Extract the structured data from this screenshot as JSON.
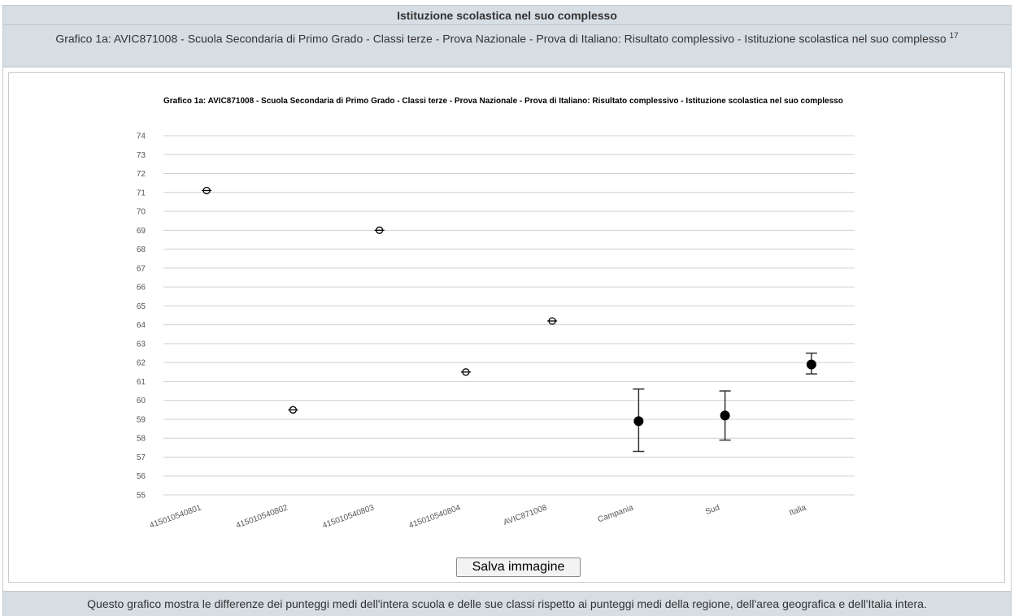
{
  "header": {
    "title": "Istituzione scolastica nel suo complesso"
  },
  "subtitle": {
    "text": "Grafico 1a: AVIC871008 - Scuola Secondaria di Primo Grado - Classi terze - Prova Nazionale - Prova di Italiano: Risultato complessivo - Istituzione scolastica nel suo complesso",
    "footnote": "17"
  },
  "chart_data": {
    "type": "scatter",
    "title": "Grafico 1a: AVIC871008 - Scuola Secondaria di Primo Grado - Classi terze - Prova Nazionale - Prova di Italiano: Risultato complessivo - Istituzione scolastica nel suo complesso",
    "xlabel": "",
    "ylabel": "",
    "ylim": [
      55,
      74
    ],
    "yticks": [
      55,
      56,
      57,
      58,
      59,
      60,
      61,
      62,
      63,
      64,
      65,
      66,
      67,
      68,
      69,
      70,
      71,
      72,
      73,
      74
    ],
    "grid": true,
    "categories": [
      "415010540801",
      "415010540802",
      "415010540803",
      "415010540804",
      "AVIC871008",
      "Campania",
      "Sud",
      "Italia"
    ],
    "points": [
      {
        "category": "415010540801",
        "value": 71.1,
        "low": null,
        "high": null,
        "marker": "open-circle"
      },
      {
        "category": "415010540802",
        "value": 59.5,
        "low": null,
        "high": null,
        "marker": "open-circle"
      },
      {
        "category": "415010540803",
        "value": 69.0,
        "low": null,
        "high": null,
        "marker": "open-circle"
      },
      {
        "category": "415010540804",
        "value": 61.5,
        "low": null,
        "high": null,
        "marker": "open-circle"
      },
      {
        "category": "AVIC871008",
        "value": 64.2,
        "low": null,
        "high": null,
        "marker": "open-circle"
      },
      {
        "category": "Campania",
        "value": 58.9,
        "low": 57.3,
        "high": 60.6,
        "marker": "filled-circle"
      },
      {
        "category": "Sud",
        "value": 59.2,
        "low": 57.9,
        "high": 60.5,
        "marker": "filled-circle"
      },
      {
        "category": "Italia",
        "value": 61.9,
        "low": 61.4,
        "high": 62.5,
        "marker": "filled-circle"
      }
    ]
  },
  "actions": {
    "save_label": "Salva immagine"
  },
  "footer": {
    "text": "Questo grafico mostra le differenze dei punteggi medi dell'intera scuola e delle sue classi rispetto ai punteggi medi della regione, dell'area geografica e dell'Italia intera."
  }
}
